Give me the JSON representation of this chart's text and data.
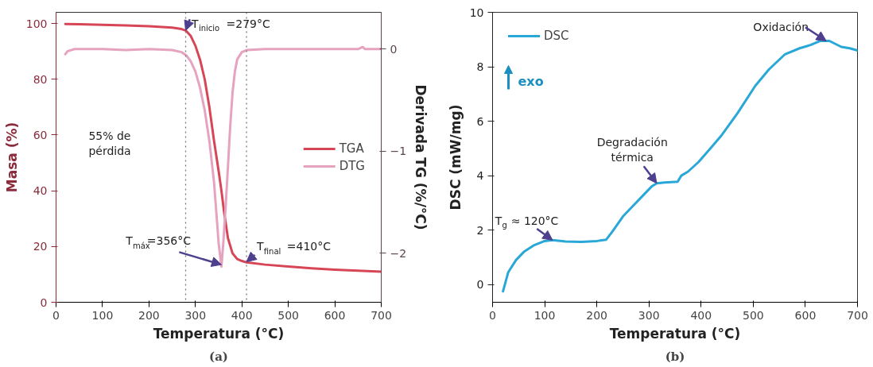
{
  "chart_data": [
    {
      "type": "line",
      "title": "(a)",
      "xlabel": "Temperatura (°C)",
      "ylabel": "Masa (%)",
      "y2label": "Derivada TG (%/°C)",
      "xlim": [
        0,
        700
      ],
      "xticks": [
        0,
        100,
        200,
        300,
        400,
        500,
        600,
        700
      ],
      "ylim": [
        0,
        104
      ],
      "yticks": [
        0,
        20,
        40,
        60,
        80,
        100
      ],
      "y2lim": [
        -2.48,
        0.36
      ],
      "y2ticks": [
        {
          "value": 0,
          "label": "0"
        },
        {
          "value": -1,
          "label": "−1"
        },
        {
          "value": -2,
          "label": "−2"
        }
      ],
      "legend": "right",
      "grid": false,
      "series": [
        {
          "name": "TGA",
          "color": "#d64657",
          "x": [
            20,
            50,
            100,
            150,
            200,
            250,
            270,
            279,
            290,
            300,
            310,
            320,
            330,
            340,
            350,
            356,
            362,
            370,
            380,
            390,
            400,
            410,
            450,
            500,
            550,
            600,
            650,
            700
          ],
          "values": [
            99.8,
            99.7,
            99.5,
            99.3,
            99,
            98.5,
            98,
            97.5,
            95.5,
            92,
            87,
            80,
            70,
            58,
            47,
            40,
            32,
            23,
            17.5,
            15.5,
            14.8,
            14.3,
            13.5,
            12.8,
            12.2,
            11.7,
            11.3,
            11
          ]
        },
        {
          "name": "DTG",
          "color": "#e6a3bf",
          "axis": "y2",
          "x": [
            20,
            25,
            40,
            100,
            150,
            200,
            250,
            270,
            280,
            290,
            300,
            310,
            320,
            330,
            340,
            345,
            350,
            356,
            360,
            365,
            370,
            375,
            380,
            385,
            390,
            400,
            410,
            450,
            500,
            550,
            600,
            650,
            660,
            665,
            700
          ],
          "values": [
            -0.05,
            -0.02,
            0,
            0,
            -0.01,
            0,
            -0.01,
            -0.03,
            -0.06,
            -0.12,
            -0.22,
            -0.38,
            -0.6,
            -0.9,
            -1.3,
            -1.6,
            -1.9,
            -2.13,
            -1.9,
            -1.55,
            -1.15,
            -0.75,
            -0.42,
            -0.22,
            -0.1,
            -0.03,
            -0.01,
            0,
            0,
            0,
            0,
            0,
            0.02,
            0,
            0
          ]
        }
      ],
      "ref_lines": [
        {
          "axis": "x",
          "value": 279,
          "line_style": "dotted",
          "color": "#777777"
        },
        {
          "axis": "x",
          "value": 410,
          "line_style": "dotted",
          "color": "#777777"
        }
      ],
      "annotations": [
        {
          "text": "T$_{inicio}$=279°C",
          "x": 279,
          "y": 97.5
        },
        {
          "text": "T$_{máx}$=356°C",
          "x": 356,
          "y": 13.5
        },
        {
          "text": "T$_{final}$=410°C",
          "x": 410,
          "y": 14.5
        },
        "55% de\npérdida"
      ]
    },
    {
      "type": "line",
      "title": "(b)",
      "xlabel": "Temperatura (°C)",
      "ylabel": "DSC (mW/mg)",
      "xlim": [
        0,
        700
      ],
      "xticks": [
        0,
        100,
        200,
        300,
        400,
        500,
        600,
        700
      ],
      "ylim": [
        -0.65,
        10
      ],
      "yticks": [
        0,
        2,
        4,
        6,
        8,
        10
      ],
      "legend": "top left",
      "grid": false,
      "series": [
        {
          "name": "DSC",
          "color": "#29a8d8",
          "x": [
            20,
            30,
            45,
            60,
            80,
            100,
            115,
            140,
            170,
            200,
            218,
            230,
            250,
            270,
            290,
            305,
            315,
            330,
            355,
            362,
            375,
            395,
            418,
            440,
            470,
            504,
            530,
            561,
            589,
            610,
            629,
            646,
            669,
            685,
            700
          ],
          "values": [
            -0.25,
            0.45,
            0.9,
            1.2,
            1.45,
            1.6,
            1.63,
            1.58,
            1.57,
            1.6,
            1.65,
            1.95,
            2.5,
            2.9,
            3.3,
            3.6,
            3.72,
            3.75,
            3.78,
            4.0,
            4.15,
            4.5,
            5.0,
            5.5,
            6.3,
            7.3,
            7.9,
            8.46,
            8.68,
            8.8,
            8.95,
            8.95,
            8.73,
            8.68,
            8.6
          ]
        }
      ],
      "annotations": [
        {
          "text": "T$_{g}$ ≈ 120°C",
          "x": 115,
          "y": 1.63
        },
        {
          "text": "Degradación\ntérmica",
          "x": 315,
          "y": 3.72
        },
        {
          "text": "Oxidación",
          "x": 640,
          "y": 8.95
        },
        "exo"
      ]
    }
  ]
}
